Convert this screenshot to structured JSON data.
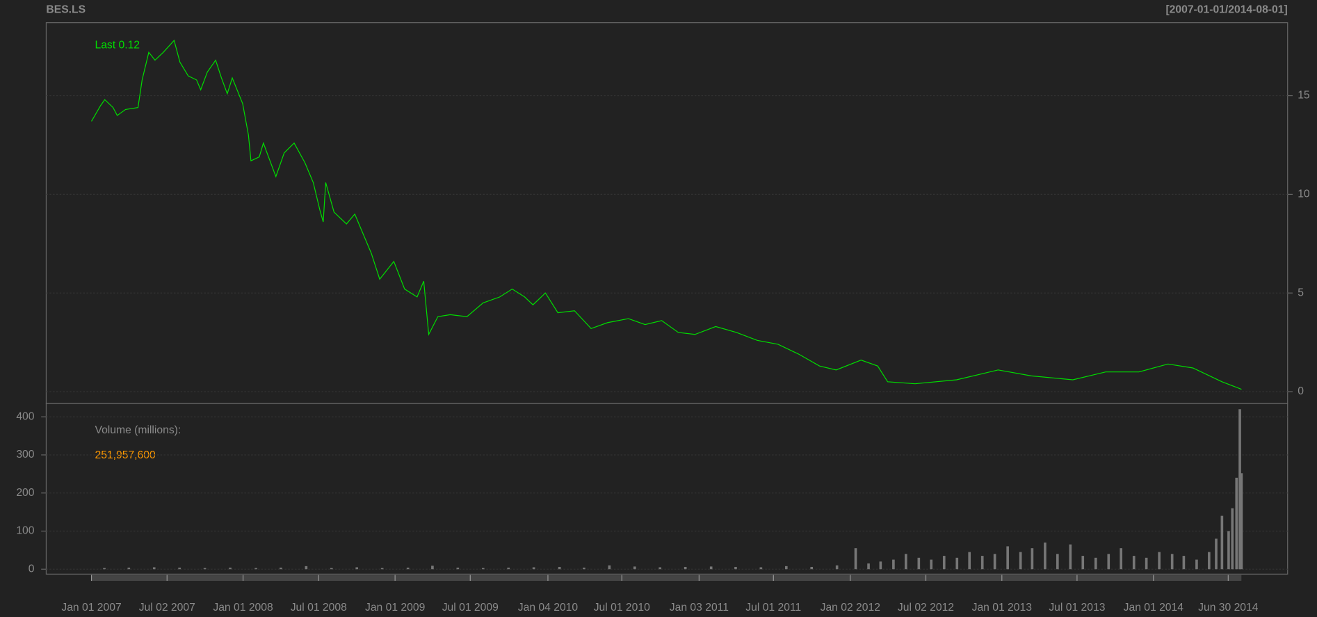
{
  "chart_data": [
    {
      "type": "line",
      "title": "BES.LS",
      "range_label": "[2007-01-01/2014-08-01]",
      "last_label": "Last 0.12",
      "color": "#00dd00",
      "grid": true,
      "xlim": [
        "2006-09-14",
        "2014-11-20"
      ],
      "ylim": [
        -0.6,
        18.7
      ],
      "yticks": [
        0,
        5,
        10,
        15
      ],
      "x": [
        "2007-01-01",
        "2007-01-23",
        "2007-02-02",
        "2007-02-22",
        "2007-03-04",
        "2007-03-24",
        "2007-04-23",
        "2007-05-03",
        "2007-05-19",
        "2007-06-03",
        "2007-06-23",
        "2007-07-19",
        "2007-08-02",
        "2007-08-22",
        "2007-09-11",
        "2007-09-21",
        "2007-10-07",
        "2007-10-27",
        "2007-11-10",
        "2007-11-24",
        "2007-12-06",
        "2007-12-31",
        "2008-01-14",
        "2008-01-20",
        "2008-02-09",
        "2008-02-19",
        "2008-03-04",
        "2008-03-20",
        "2008-04-09",
        "2008-05-03",
        "2008-05-29",
        "2008-06-18",
        "2008-07-04",
        "2008-07-12",
        "2008-07-18",
        "2008-08-07",
        "2008-09-06",
        "2008-09-26",
        "2008-10-16",
        "2008-11-05",
        "2008-11-25",
        "2008-12-29",
        "2009-01-24",
        "2009-02-23",
        "2009-03-11",
        "2009-03-23",
        "2009-04-14",
        "2009-05-14",
        "2009-06-23",
        "2009-08-01",
        "2009-09-10",
        "2009-10-10",
        "2009-11-09",
        "2009-11-29",
        "2009-12-29",
        "2010-01-28",
        "2010-03-09",
        "2010-04-18",
        "2010-05-28",
        "2010-07-17",
        "2010-08-26",
        "2010-10-05",
        "2010-11-14",
        "2010-12-24",
        "2011-02-12",
        "2011-04-03",
        "2011-05-23",
        "2011-07-12",
        "2011-08-31",
        "2011-10-20",
        "2011-11-29",
        "2012-01-28",
        "2012-03-08",
        "2012-04-01",
        "2012-06-06",
        "2012-09-14",
        "2012-12-23",
        "2013-03-13",
        "2013-06-21",
        "2013-09-08",
        "2013-11-27",
        "2014-02-05",
        "2014-04-06",
        "2014-05-16",
        "2014-06-15",
        "2014-07-10",
        "2014-08-01"
      ],
      "values": [
        13.7,
        14.5,
        14.8,
        14.4,
        14.0,
        14.3,
        14.4,
        15.8,
        17.2,
        16.8,
        17.2,
        17.8,
        16.7,
        16.0,
        15.8,
        15.3,
        16.2,
        16.8,
        15.9,
        15.1,
        15.9,
        14.6,
        13.0,
        11.7,
        11.9,
        12.6,
        11.8,
        10.9,
        12.1,
        12.6,
        11.6,
        10.6,
        9.2,
        8.6,
        10.6,
        9.1,
        8.5,
        9.0,
        8.0,
        7.0,
        5.7,
        6.6,
        5.2,
        4.8,
        5.6,
        2.9,
        3.8,
        3.9,
        3.8,
        4.5,
        4.8,
        5.2,
        4.8,
        4.4,
        5.0,
        4.0,
        4.1,
        3.2,
        3.5,
        3.7,
        3.4,
        3.6,
        3.0,
        2.9,
        3.3,
        3.0,
        2.6,
        2.4,
        1.9,
        1.3,
        1.1,
        1.6,
        1.3,
        0.5,
        0.4,
        0.6,
        1.1,
        0.8,
        0.6,
        1.0,
        1.0,
        1.4,
        1.2,
        0.8,
        0.5,
        0.3,
        0.12
      ]
    },
    {
      "type": "bar",
      "ylabel": "Volume (millions):",
      "last_value_label": "251,957,600",
      "color": "#777777",
      "grid": true,
      "xlim": [
        "2006-09-14",
        "2014-11-20"
      ],
      "ylim": [
        -13,
        435
      ],
      "yticks": [
        0,
        100,
        200,
        300,
        400
      ],
      "xticks": [
        {
          "value": "2007-01-01",
          "label": "Jan 01 2007"
        },
        {
          "value": "2007-07-02",
          "label": "Jul 02 2007"
        },
        {
          "value": "2008-01-01",
          "label": "Jan 01 2008"
        },
        {
          "value": "2008-07-01",
          "label": "Jul 01 2008"
        },
        {
          "value": "2009-01-01",
          "label": "Jan 01 2009"
        },
        {
          "value": "2009-07-01",
          "label": "Jul 01 2009"
        },
        {
          "value": "2010-01-04",
          "label": "Jan 04 2010"
        },
        {
          "value": "2010-07-01",
          "label": "Jul 01 2010"
        },
        {
          "value": "2011-01-03",
          "label": "Jan 03 2011"
        },
        {
          "value": "2011-07-01",
          "label": "Jul 01 2011"
        },
        {
          "value": "2012-01-02",
          "label": "Jan 02 2012"
        },
        {
          "value": "2012-07-02",
          "label": "Jul 02 2012"
        },
        {
          "value": "2013-01-01",
          "label": "Jan 01 2013"
        },
        {
          "value": "2013-07-01",
          "label": "Jul 01 2013"
        },
        {
          "value": "2014-01-01",
          "label": "Jan 01 2014"
        },
        {
          "value": "2014-06-30",
          "label": "Jun 30 2014"
        }
      ],
      "x": [
        "2007-02-01",
        "2007-04-01",
        "2007-06-01",
        "2007-08-01",
        "2007-10-01",
        "2007-12-01",
        "2008-02-01",
        "2008-04-01",
        "2008-06-01",
        "2008-08-01",
        "2008-10-01",
        "2008-12-01",
        "2009-02-01",
        "2009-04-01",
        "2009-06-01",
        "2009-08-01",
        "2009-10-01",
        "2009-12-01",
        "2010-02-01",
        "2010-04-01",
        "2010-06-01",
        "2010-08-01",
        "2010-10-01",
        "2010-12-01",
        "2011-02-01",
        "2011-04-01",
        "2011-06-01",
        "2011-08-01",
        "2011-10-01",
        "2011-12-01",
        "2012-01-15",
        "2012-02-15",
        "2012-03-15",
        "2012-04-15",
        "2012-05-15",
        "2012-06-15",
        "2012-07-15",
        "2012-08-15",
        "2012-09-15",
        "2012-10-15",
        "2012-11-15",
        "2012-12-15",
        "2013-01-15",
        "2013-02-15",
        "2013-03-15",
        "2013-04-15",
        "2013-05-15",
        "2013-06-15",
        "2013-07-15",
        "2013-08-15",
        "2013-09-15",
        "2013-10-15",
        "2013-11-15",
        "2013-12-15",
        "2014-01-15",
        "2014-02-15",
        "2014-03-15",
        "2014-04-15",
        "2014-05-15",
        "2014-06-01",
        "2014-06-15",
        "2014-07-01",
        "2014-07-10",
        "2014-07-20",
        "2014-07-28",
        "2014-08-01"
      ],
      "values": [
        3,
        4,
        5,
        4,
        3,
        4,
        3,
        4,
        8,
        3,
        5,
        3,
        4,
        9,
        4,
        3,
        4,
        5,
        6,
        4,
        10,
        7,
        5,
        6,
        7,
        6,
        5,
        8,
        6,
        10,
        55,
        15,
        20,
        25,
        40,
        30,
        25,
        35,
        30,
        45,
        35,
        40,
        60,
        45,
        55,
        70,
        40,
        65,
        35,
        30,
        40,
        55,
        35,
        30,
        45,
        40,
        35,
        25,
        45,
        80,
        140,
        100,
        160,
        240,
        420,
        251.9576
      ]
    }
  ]
}
